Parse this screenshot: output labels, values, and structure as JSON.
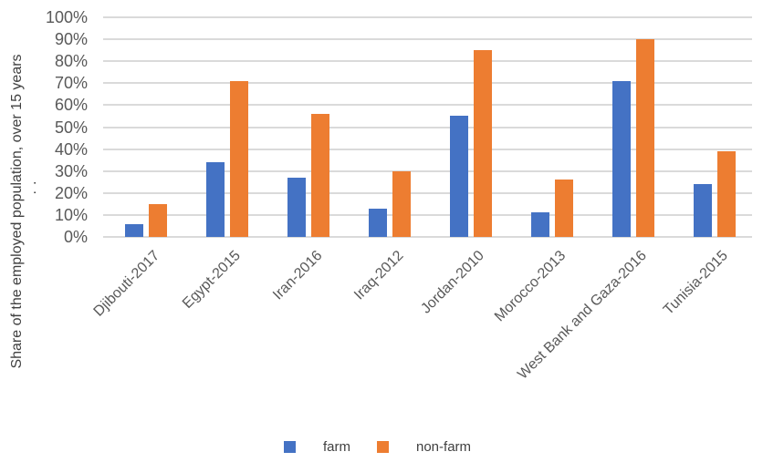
{
  "chart_data": {
    "type": "bar",
    "title": "",
    "ylabel": "Share of the employed population, over 15 years",
    "ylabel_overflow": "..",
    "xlabel": "",
    "categories": [
      "Djibouti-2017",
      "Egypt-2015",
      "Iran-2016",
      "Iraq-2012",
      "Jordan-2010",
      "Morocco-2013",
      "West Bank and Gaza-2016",
      "Tunisia-2015"
    ],
    "series": [
      {
        "name": "farm",
        "color": "#4472C4",
        "values": [
          6,
          34,
          27,
          13,
          55,
          11,
          71,
          24
        ]
      },
      {
        "name": "non-farm",
        "color": "#ED7D31",
        "values": [
          15,
          71,
          56,
          30,
          85,
          26,
          90,
          39
        ]
      }
    ],
    "ylim": [
      0,
      100
    ],
    "ytick_step": 10,
    "yticks": [
      "0%",
      "10%",
      "20%",
      "30%",
      "40%",
      "50%",
      "60%",
      "70%",
      "80%",
      "90%",
      "100%"
    ],
    "grid": true,
    "legend_position": "bottom",
    "colors": {
      "gridline": "#DADADA",
      "axis_text": "#595959",
      "title_text": "#404040",
      "legend_text": "#404040"
    }
  }
}
